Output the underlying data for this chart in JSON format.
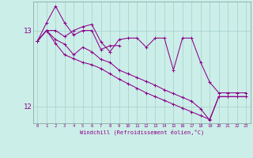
{
  "xlabel": "Windchill (Refroidissement éolien,°C)",
  "bg_color": "#cceee8",
  "line_color": "#8b008b",
  "grid_color": "#aad4ce",
  "x_min": -0.5,
  "x_max": 23.5,
  "y_min": 11.78,
  "y_max": 13.38,
  "yticks": [
    12,
    13
  ],
  "xticks": [
    0,
    1,
    2,
    3,
    4,
    5,
    6,
    7,
    8,
    9,
    10,
    11,
    12,
    13,
    14,
    15,
    16,
    17,
    18,
    19,
    20,
    21,
    22,
    23
  ],
  "series": [
    [
      12.86,
      13.0,
      13.0,
      12.92,
      13.0,
      13.05,
      13.08,
      12.85,
      12.72,
      12.88,
      12.9,
      12.9,
      12.78,
      12.9,
      12.9,
      12.48,
      12.9,
      12.9,
      12.58,
      12.32,
      12.18,
      12.18,
      12.18,
      12.18
    ],
    [
      12.86,
      13.1,
      13.32,
      13.1,
      12.94,
      13.0,
      13.0,
      12.75,
      12.8,
      12.8,
      null,
      null,
      null,
      null,
      null,
      null,
      null,
      null,
      null,
      null,
      null,
      null,
      null,
      null
    ],
    [
      12.86,
      13.0,
      12.88,
      12.82,
      12.68,
      12.78,
      12.72,
      12.62,
      12.58,
      12.48,
      12.43,
      12.38,
      12.33,
      12.28,
      12.22,
      12.17,
      12.12,
      12.07,
      11.97,
      11.82,
      12.13,
      12.13,
      12.13,
      12.13
    ],
    [
      12.86,
      13.0,
      12.83,
      12.68,
      12.63,
      12.58,
      12.55,
      12.5,
      12.43,
      12.36,
      12.3,
      12.24,
      12.18,
      12.13,
      12.08,
      12.03,
      11.98,
      11.93,
      11.88,
      11.83,
      12.13,
      12.13,
      12.13,
      12.13
    ]
  ]
}
